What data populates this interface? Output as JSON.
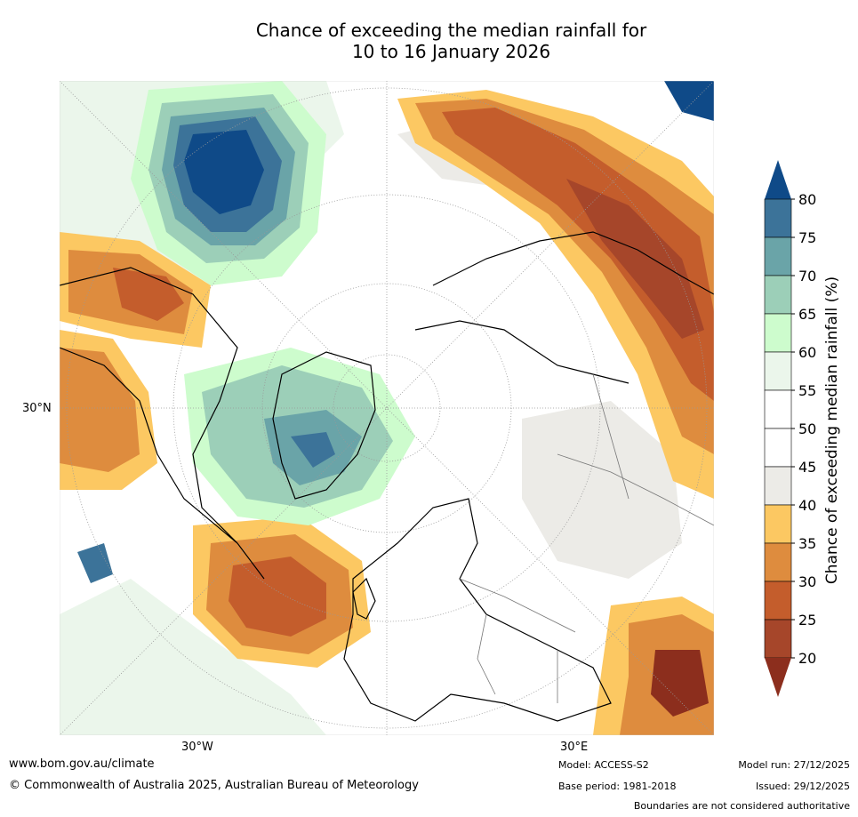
{
  "title": {
    "line1": "Chance of exceeding the median rainfall for",
    "line2": "10 to 16 January 2026"
  },
  "axis_labels": {
    "left": "30°N",
    "bottom_left": "30°W",
    "bottom_right": "30°E"
  },
  "colorbar": {
    "label": "Chance of exceeding median rainfall (%)",
    "ticks": [
      "80",
      "75",
      "70",
      "65",
      "60",
      "55",
      "50",
      "45",
      "40",
      "35",
      "30",
      "25",
      "20"
    ],
    "colors": [
      "#0f4a88",
      "#3c7399",
      "#6aa4a8",
      "#9ccfb8",
      "#cdfccd",
      "#ebf6eb",
      "#ffffff",
      "#ffffff",
      "#ecebe7",
      "#fcc862",
      "#de8c3e",
      "#c45d2c",
      "#a6462a",
      "#8c2e1d"
    ]
  },
  "footer": {
    "url": "www.bom.gov.au/climate",
    "copyright": "© Commonwealth of Australia 2025, Australian Bureau of Meteorology",
    "model": "Model: ACCESS-S2",
    "base_period": "Base period: 1981-2018",
    "model_run": "Model run: 27/12/2025",
    "issued": "Issued: 29/12/2025",
    "disclaimer": "Boundaries are not considered authoritative"
  }
}
